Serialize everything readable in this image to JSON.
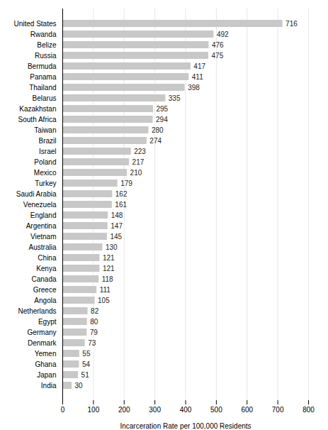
{
  "chart_data": {
    "type": "bar",
    "orientation": "horizontal",
    "categories": [
      "United States",
      "Rwanda",
      "Belize",
      "Russia",
      "Bermuda",
      "Panama",
      "Thailand",
      "Belarus",
      "Kazakhstan",
      "South Africa",
      "Taiwan",
      "Brazil",
      "Israel",
      "Poland",
      "Mexico",
      "Turkey",
      "Saudi Arabia",
      "Venezuela",
      "England",
      "Argentina",
      "Vietnam",
      "Australia",
      "China",
      "Kenya",
      "Canada",
      "Greece",
      "Angola",
      "Netherlands",
      "Egypt",
      "Germany",
      "Denmark",
      "Yemen",
      "Ghana",
      "Japan",
      "India"
    ],
    "values": [
      716,
      492,
      476,
      475,
      417,
      411,
      398,
      335,
      295,
      294,
      280,
      274,
      223,
      217,
      210,
      179,
      162,
      161,
      148,
      147,
      145,
      130,
      121,
      121,
      118,
      111,
      105,
      82,
      80,
      79,
      73,
      55,
      54,
      51,
      30
    ],
    "color": "#c8c8c8",
    "xlabel": "Incarceration Rate per 100,000 Residents",
    "xlim": [
      0,
      800
    ],
    "xticks": [
      0,
      100,
      200,
      300,
      400,
      500,
      600,
      700,
      800
    ],
    "grid": true,
    "data_labels": true
  }
}
